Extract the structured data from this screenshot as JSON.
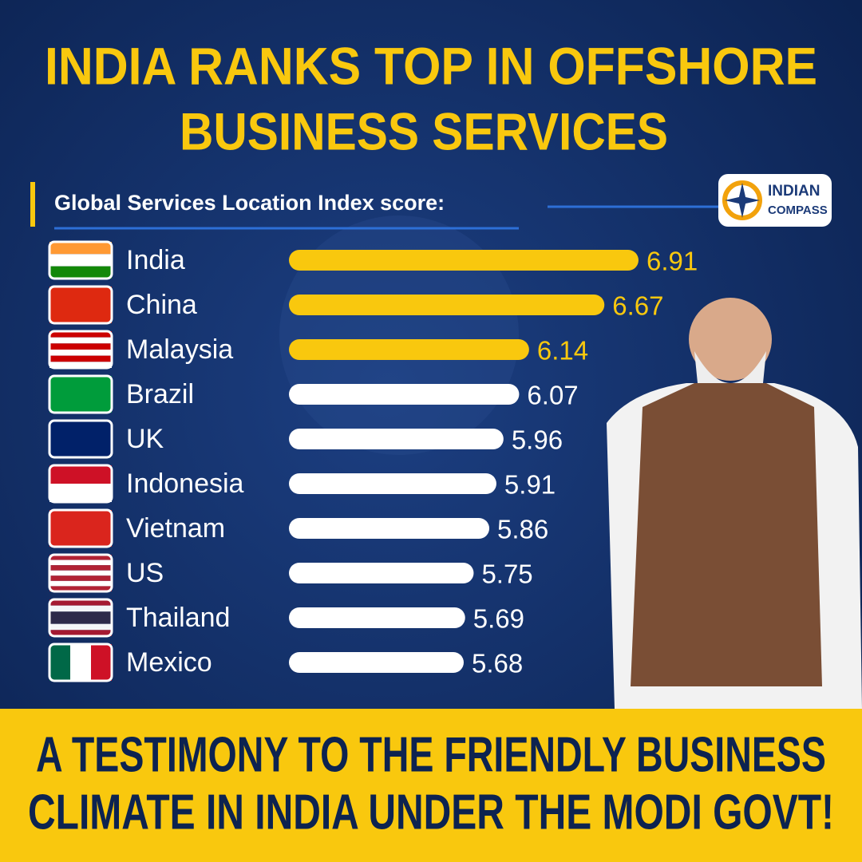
{
  "chart_data": {
    "type": "bar",
    "orientation": "horizontal",
    "title": [
      "INDIA RANKS TOP IN OFFSHORE",
      "BUSINESS SERVICES"
    ],
    "subtitle": "Global Services Location Index score:",
    "categories": [
      "India",
      "China",
      "Malaysia",
      "Brazil",
      "UK",
      "Indonesia",
      "Vietnam",
      "US",
      "Thailand",
      "Mexico"
    ],
    "values": [
      6.91,
      6.67,
      6.14,
      6.07,
      5.96,
      5.91,
      5.86,
      5.75,
      5.69,
      5.68
    ],
    "colors": [
      "#f9c80e",
      "#f9c80e",
      "#f9c80e",
      "#ffffff",
      "#ffffff",
      "#ffffff",
      "#ffffff",
      "#ffffff",
      "#ffffff",
      "#ffffff"
    ],
    "xlim": [
      4.45,
      7
    ],
    "footer": [
      "A TESTIMONY TO THE FRIENDLY BUSINESS",
      "CLIMATE IN INDIA UNDER THE MODI GOVT!"
    ]
  },
  "logo": [
    "INDIAN",
    "COMPASS"
  ]
}
